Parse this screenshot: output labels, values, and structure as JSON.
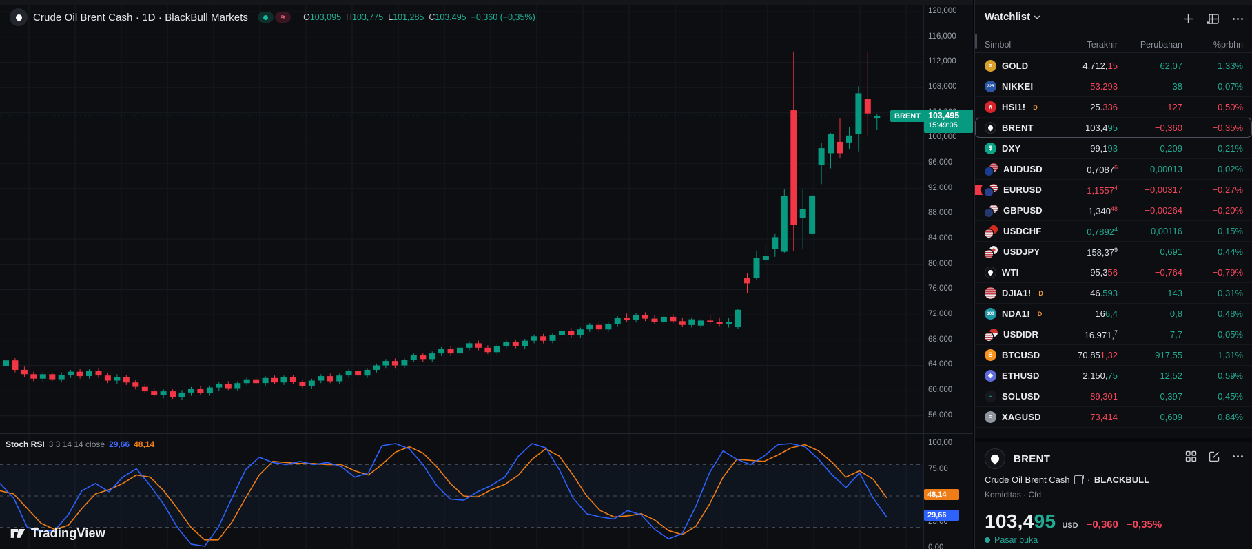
{
  "colors": {
    "green": "#089981",
    "red": "#f23645",
    "grid": "#171a20",
    "dotted": "#1cb39a",
    "blue_line": "#2e62ff",
    "orange_line": "#ef7d17"
  },
  "top_legend": {
    "title": "Crude Oil Brent Cash · 1D · BlackBull Markets",
    "o_label": "O",
    "o": "103,095",
    "h_label": "H",
    "h": "103,775",
    "l_label": "L",
    "l": "101,285",
    "c_label": "C",
    "c": "103,495",
    "change": "−0,360 (−0,35%)",
    "sync_glyph": "≈"
  },
  "price_axis": {
    "ticks": [
      {
        "v": 120,
        "label": "120,000"
      },
      {
        "v": 116,
        "label": "116,000"
      },
      {
        "v": 112,
        "label": "112,000"
      },
      {
        "v": 108,
        "label": "108,000"
      },
      {
        "v": 104,
        "label": "104,000"
      },
      {
        "v": 100,
        "label": "100,000"
      },
      {
        "v": 96,
        "label": "96,000"
      },
      {
        "v": 92,
        "label": "92,000"
      },
      {
        "v": 88,
        "label": "88,000"
      },
      {
        "v": 84,
        "label": "84,000"
      },
      {
        "v": 80,
        "label": "80,000"
      },
      {
        "v": 76,
        "label": "76,000"
      },
      {
        "v": 72,
        "label": "72,000"
      },
      {
        "v": 68,
        "label": "68,000"
      },
      {
        "v": 64,
        "label": "64,000"
      },
      {
        "v": 60,
        "label": "60,000"
      },
      {
        "v": 56,
        "label": "56,000"
      }
    ]
  },
  "price_tag": {
    "price": "103,495",
    "time": "15:49:05",
    "symbol": "BRENT"
  },
  "indicator": {
    "name": "Stoch RSI",
    "params": "3 3 14 14 close",
    "k_value": "29,66",
    "d_value": "48,14",
    "ticks": [
      {
        "v": 100,
        "label": "100,00"
      },
      {
        "v": 75,
        "label": "75,00"
      },
      {
        "v": 25,
        "label": "25,00"
      },
      {
        "v": 0,
        "label": "0,00"
      }
    ],
    "k_tag": "29,66",
    "d_tag": "48,14"
  },
  "logo": {
    "text": "TradingView"
  },
  "watchlist": {
    "title": "Watchlist",
    "columns": {
      "symbol": "Simbol",
      "last": "Terakhir",
      "change": "Perubahan",
      "pct": "%prbhn"
    },
    "rows": [
      {
        "symbol": "GOLD",
        "icon": {
          "kind": "circle",
          "bg": "#d99f2b",
          "glyph": "≡",
          "gc": "#ffffff"
        },
        "last": [
          {
            "t": "4.712,",
            "c": "w"
          },
          {
            "t": "15",
            "c": "r"
          }
        ],
        "chg": "62,07",
        "cc": "g",
        "pct": "1,33%",
        "pc": "g"
      },
      {
        "symbol": "NIKKEI",
        "icon": {
          "kind": "circle",
          "bg": "#2b56a7",
          "glyph": "225",
          "gc": "#ffffff"
        },
        "last": [
          {
            "t": "53.293",
            "c": "r"
          }
        ],
        "chg": "38",
        "cc": "g",
        "pct": "0,07%",
        "pc": "g"
      },
      {
        "symbol": "HSI1!",
        "delayed": "D",
        "icon": {
          "kind": "circle",
          "bg": "#d8232a",
          "glyph": "∧",
          "gc": "#ffffff"
        },
        "last": [
          {
            "t": "25.",
            "c": "w"
          },
          {
            "t": "336",
            "c": "r"
          }
        ],
        "chg": "−127",
        "cc": "r",
        "pct": "−0,50%",
        "pc": "r"
      },
      {
        "symbol": "BRENT",
        "selected": true,
        "icon": {
          "kind": "droplet"
        },
        "last": [
          {
            "t": "103,4",
            "c": "w"
          },
          {
            "t": "95",
            "c": "g"
          }
        ],
        "chg": "−0,360",
        "cc": "r",
        "pct": "−0,35%",
        "pc": "r"
      },
      {
        "symbol": "DXY",
        "icon": {
          "kind": "circle",
          "bg": "#0aa487",
          "glyph": "$",
          "gc": "#ffffff"
        },
        "last": [
          {
            "t": "99,1",
            "c": "w"
          },
          {
            "t": "93",
            "c": "g"
          }
        ],
        "chg": "0,209",
        "cc": "g",
        "pct": "0,21%",
        "pc": "g"
      },
      {
        "symbol": "AUDUSD",
        "icon": {
          "kind": "pair",
          "front": "#1b3c8f",
          "back": "us"
        },
        "last": [
          {
            "t": "0,7087",
            "c": "w"
          },
          {
            "t": "6",
            "c": "r",
            "sup": true
          }
        ],
        "chg": "0,00013",
        "cc": "g",
        "pct": "0,02%",
        "pc": "g"
      },
      {
        "symbol": "EURUSD",
        "flagged": true,
        "icon": {
          "kind": "pair",
          "front": "#27408f",
          "back": "us"
        },
        "last": [
          {
            "t": "1,1557",
            "c": "r"
          },
          {
            "t": "4",
            "c": "r",
            "sup": true
          }
        ],
        "chg": "−0,00317",
        "cc": "r",
        "pct": "−0,27%",
        "pc": "r"
      },
      {
        "symbol": "GBPUSD",
        "icon": {
          "kind": "pair",
          "front": "#24386e",
          "back": "us"
        },
        "last": [
          {
            "t": "1,340",
            "c": "w"
          },
          {
            "t": "48",
            "c": "r",
            "sup": true
          }
        ],
        "chg": "−0,00264",
        "cc": "r",
        "pct": "−0,20%",
        "pc": "r"
      },
      {
        "symbol": "USDCHF",
        "icon": {
          "kind": "pair",
          "front": "us",
          "back": "#d52b1e"
        },
        "last": [
          {
            "t": "0,7892",
            "c": "g"
          },
          {
            "t": "4",
            "c": "g",
            "sup": true
          }
        ],
        "chg": "0,00116",
        "cc": "g",
        "pct": "0,15%",
        "pc": "g"
      },
      {
        "symbol": "USDJPY",
        "icon": {
          "kind": "pair",
          "front": "us",
          "back": "jp"
        },
        "last": [
          {
            "t": "158,37",
            "c": "w"
          },
          {
            "t": "9",
            "c": "w",
            "sup": true
          }
        ],
        "chg": "0,691",
        "cc": "g",
        "pct": "0,44%",
        "pc": "g"
      },
      {
        "symbol": "WTI",
        "icon": {
          "kind": "droplet"
        },
        "last": [
          {
            "t": "95,3",
            "c": "w"
          },
          {
            "t": "56",
            "c": "r"
          }
        ],
        "chg": "−0,764",
        "cc": "r",
        "pct": "−0,79%",
        "pc": "r"
      },
      {
        "symbol": "DJIA1!",
        "delayed": "D",
        "icon": {
          "kind": "circle",
          "bg": "us",
          "glyph": "",
          "gc": "#ffffff"
        },
        "last": [
          {
            "t": "46.",
            "c": "w"
          },
          {
            "t": "593",
            "c": "g"
          }
        ],
        "chg": "143",
        "cc": "g",
        "pct": "0,31%",
        "pc": "g"
      },
      {
        "symbol": "NDA1!",
        "delayed": "D",
        "icon": {
          "kind": "circle",
          "bg": "#1d96a5",
          "glyph": "100",
          "gc": "#ffffff"
        },
        "last": [
          {
            "t": "16",
            "c": "w"
          },
          {
            "t": "6,4",
            "c": "g"
          }
        ],
        "chg": "0,8",
        "cc": "g",
        "pct": "0,48%",
        "pc": "g"
      },
      {
        "symbol": "USDIDR",
        "icon": {
          "kind": "pair",
          "front": "us",
          "back": "id"
        },
        "last": [
          {
            "t": "16.971,",
            "c": "w"
          },
          {
            "t": "7",
            "c": "w",
            "sup": true
          }
        ],
        "chg": "7,7",
        "cc": "g",
        "pct": "0,05%",
        "pc": "g"
      },
      {
        "symbol": "BTCUSD",
        "icon": {
          "kind": "circle",
          "bg": "#f7931a",
          "glyph": "B",
          "gc": "#ffffff"
        },
        "last": [
          {
            "t": "70.85",
            "c": "w"
          },
          {
            "t": "1,32",
            "c": "r"
          }
        ],
        "chg": "917,55",
        "cc": "g",
        "pct": "1,31%",
        "pc": "g"
      },
      {
        "symbol": "ETHUSD",
        "icon": {
          "kind": "circle",
          "bg": "#5f6cdb",
          "glyph": "◆",
          "gc": "#ffffff"
        },
        "last": [
          {
            "t": "2.150,",
            "c": "w"
          },
          {
            "t": "75",
            "c": "g"
          }
        ],
        "chg": "12,52",
        "cc": "g",
        "pct": "0,59%",
        "pc": "g"
      },
      {
        "symbol": "SOLUSD",
        "icon": {
          "kind": "circle",
          "bg": "#17171f",
          "glyph": "≡",
          "gc": "#2bd8b0"
        },
        "last": [
          {
            "t": "89,301",
            "c": "r"
          }
        ],
        "chg": "0,397",
        "cc": "g",
        "pct": "0,45%",
        "pc": "g"
      },
      {
        "symbol": "XAGUSD",
        "icon": {
          "kind": "circle",
          "bg": "#8e959e",
          "glyph": "≡",
          "gc": "#ffffff"
        },
        "last": [
          {
            "t": "73,414",
            "c": "r"
          }
        ],
        "chg": "0,609",
        "cc": "g",
        "pct": "0,84%",
        "pc": "g"
      }
    ]
  },
  "detail": {
    "symbol": "BRENT",
    "name": "Crude Oil Brent Cash",
    "sep": "·",
    "broker": "BLACKBULL",
    "category": "Komiditas · Cfd",
    "price_main": "103,4",
    "price_accent": "95",
    "currency": "USD",
    "change": "−0,360",
    "change_pct": "−0,35%",
    "status": "Pasar buka"
  },
  "chart_data": {
    "type": "candlestick",
    "symbol": "Crude Oil Brent Cash",
    "timeframe": "1D",
    "broker": "BlackBull Markets",
    "last_price": 103.495,
    "ohlc_current": {
      "o": 103.095,
      "h": 103.775,
      "l": 101.285,
      "c": 103.495
    },
    "price_axis_range": [
      52.6,
      121.1
    ],
    "grid": {
      "v_start": 42,
      "v_step": 67
    },
    "candles": [
      [
        63.9,
        65.0,
        63.5,
        64.8
      ],
      [
        64.8,
        65.2,
        62.9,
        63.3
      ],
      [
        63.3,
        63.8,
        62.2,
        62.6
      ],
      [
        62.6,
        63.0,
        61.5,
        61.9
      ],
      [
        61.9,
        63.0,
        61.4,
        62.6
      ],
      [
        62.6,
        62.9,
        61.5,
        61.8
      ],
      [
        61.8,
        62.9,
        61.4,
        62.5
      ],
      [
        62.5,
        63.3,
        62.0,
        63.0
      ],
      [
        63.0,
        63.4,
        61.9,
        62.3
      ],
      [
        62.3,
        63.5,
        61.9,
        63.1
      ],
      [
        63.1,
        63.6,
        62.0,
        62.4
      ],
      [
        62.4,
        62.8,
        61.2,
        61.6
      ],
      [
        61.6,
        62.6,
        61.1,
        62.2
      ],
      [
        62.2,
        62.5,
        60.9,
        61.3
      ],
      [
        61.3,
        61.7,
        60.2,
        60.6
      ],
      [
        60.6,
        61.1,
        59.6,
        59.9
      ],
      [
        59.9,
        60.4,
        58.9,
        59.3
      ],
      [
        59.3,
        60.3,
        58.8,
        59.9
      ],
      [
        59.9,
        60.2,
        58.7,
        59.0
      ],
      [
        59.0,
        60.1,
        58.6,
        59.7
      ],
      [
        59.7,
        60.6,
        59.2,
        60.3
      ],
      [
        60.3,
        60.7,
        59.3,
        59.6
      ],
      [
        59.6,
        60.8,
        59.2,
        60.5
      ],
      [
        60.5,
        61.4,
        60.0,
        61.1
      ],
      [
        61.1,
        61.5,
        60.1,
        60.4
      ],
      [
        60.4,
        61.5,
        60.0,
        61.2
      ],
      [
        61.2,
        62.1,
        60.8,
        61.8
      ],
      [
        61.8,
        62.2,
        60.9,
        61.2
      ],
      [
        61.2,
        62.3,
        60.8,
        62.0
      ],
      [
        62.0,
        62.4,
        61.0,
        61.3
      ],
      [
        61.3,
        62.4,
        60.9,
        62.1
      ],
      [
        62.1,
        62.5,
        61.0,
        61.4
      ],
      [
        61.4,
        61.8,
        60.4,
        60.7
      ],
      [
        60.7,
        61.9,
        60.3,
        61.6
      ],
      [
        61.6,
        62.6,
        61.2,
        62.3
      ],
      [
        62.3,
        62.7,
        61.2,
        61.5
      ],
      [
        61.5,
        62.7,
        61.1,
        62.4
      ],
      [
        62.4,
        63.4,
        62.0,
        63.1
      ],
      [
        63.1,
        63.5,
        62.1,
        62.4
      ],
      [
        62.4,
        63.6,
        62.0,
        63.3
      ],
      [
        63.3,
        64.3,
        62.9,
        64.0
      ],
      [
        64.0,
        65.0,
        63.6,
        64.7
      ],
      [
        64.7,
        65.1,
        63.6,
        64.0
      ],
      [
        64.0,
        65.2,
        63.6,
        64.9
      ],
      [
        64.9,
        65.9,
        64.5,
        65.6
      ],
      [
        65.6,
        66.0,
        64.6,
        65.0
      ],
      [
        65.0,
        66.2,
        64.6,
        65.9
      ],
      [
        65.9,
        66.9,
        65.5,
        66.6
      ],
      [
        66.6,
        67.0,
        65.5,
        65.9
      ],
      [
        65.9,
        67.1,
        65.5,
        66.8
      ],
      [
        66.8,
        67.8,
        66.4,
        67.5
      ],
      [
        67.5,
        67.9,
        66.4,
        66.8
      ],
      [
        66.8,
        67.2,
        65.8,
        66.1
      ],
      [
        66.1,
        67.3,
        65.7,
        67.0
      ],
      [
        67.0,
        68.0,
        66.6,
        67.7
      ],
      [
        67.7,
        68.1,
        66.7,
        67.0
      ],
      [
        67.0,
        68.2,
        66.6,
        67.9
      ],
      [
        67.9,
        68.9,
        67.5,
        68.6
      ],
      [
        68.6,
        69.0,
        67.5,
        67.9
      ],
      [
        67.9,
        69.1,
        67.5,
        68.8
      ],
      [
        68.8,
        69.8,
        68.4,
        69.5
      ],
      [
        69.5,
        69.9,
        68.4,
        68.8
      ],
      [
        68.8,
        70.0,
        68.4,
        69.7
      ],
      [
        69.7,
        70.7,
        69.3,
        70.4
      ],
      [
        70.4,
        70.8,
        69.3,
        69.7
      ],
      [
        69.7,
        70.9,
        69.3,
        70.6
      ],
      [
        70.6,
        71.8,
        70.2,
        71.5
      ],
      [
        71.5,
        72.2,
        70.9,
        71.2
      ],
      [
        71.2,
        72.3,
        70.8,
        72.0
      ],
      [
        72.0,
        72.4,
        71.0,
        71.4
      ],
      [
        71.4,
        71.9,
        70.6,
        70.9
      ],
      [
        70.9,
        72.0,
        70.5,
        71.7
      ],
      [
        71.7,
        72.1,
        70.7,
        71.0
      ],
      [
        71.0,
        71.5,
        70.1,
        70.4
      ],
      [
        70.4,
        71.6,
        70.0,
        71.3
      ],
      [
        70.3,
        71.4,
        69.9,
        71.1
      ],
      [
        71.1,
        71.9,
        70.6,
        70.9
      ],
      [
        70.9,
        71.6,
        70.2,
        70.5
      ],
      [
        70.5,
        71.5,
        70.0,
        70.9
      ],
      [
        70.1,
        73.0,
        69.8,
        72.8
      ],
      [
        77.9,
        78.6,
        75.4,
        77.0
      ],
      [
        77.9,
        82.1,
        77.5,
        81.0
      ],
      [
        80.7,
        83.2,
        79.9,
        81.4
      ],
      [
        82.4,
        84.9,
        81.2,
        84.3
      ],
      [
        82.0,
        91.9,
        81.8,
        90.8
      ],
      [
        104.4,
        113.7,
        82.1,
        86.3
      ],
      [
        87.3,
        91.9,
        82.4,
        88.7
      ],
      [
        84.9,
        91.0,
        84.4,
        90.9
      ],
      [
        95.7,
        99.3,
        92.7,
        98.4
      ],
      [
        97.6,
        100.8,
        95.2,
        100.6
      ],
      [
        99.4,
        103.1,
        96.8,
        97.6
      ],
      [
        99.3,
        101.7,
        98.2,
        100.4
      ],
      [
        100.6,
        108.2,
        97.9,
        107.1
      ],
      [
        106.2,
        113.7,
        100.4,
        103.9
      ],
      [
        103.095,
        103.775,
        101.285,
        103.495
      ]
    ],
    "stoch_rsi": {
      "range": [
        0,
        100
      ],
      "bands": [
        80,
        50,
        20
      ],
      "k_current": 29.66,
      "d_current": 48.14,
      "k": [
        62,
        48,
        20,
        16,
        17,
        32,
        55,
        62,
        54,
        68,
        76,
        60,
        42,
        20,
        4,
        2,
        20,
        48,
        75,
        87,
        82,
        80,
        83,
        80,
        82,
        78,
        68,
        72,
        98,
        100,
        95,
        80,
        60,
        47,
        46,
        54,
        60,
        68,
        88,
        100,
        96,
        75,
        48,
        33,
        30,
        28,
        36,
        32,
        18,
        9,
        14,
        40,
        72,
        93,
        85,
        80,
        88,
        99,
        100,
        97,
        85,
        70,
        58,
        72,
        48,
        29.66
      ],
      "d": [
        55,
        52,
        38,
        24,
        18,
        22,
        38,
        52,
        56,
        62,
        70,
        68,
        55,
        38,
        20,
        8,
        8,
        25,
        48,
        70,
        83,
        82,
        81,
        81,
        80,
        80,
        74,
        70,
        80,
        92,
        97,
        91,
        78,
        62,
        50,
        49,
        56,
        61,
        70,
        85,
        95,
        88,
        70,
        50,
        36,
        30,
        31,
        33,
        27,
        17,
        13,
        21,
        42,
        68,
        85,
        84,
        83,
        89,
        96,
        99,
        93,
        82,
        68,
        74,
        66,
        48.14
      ]
    }
  }
}
